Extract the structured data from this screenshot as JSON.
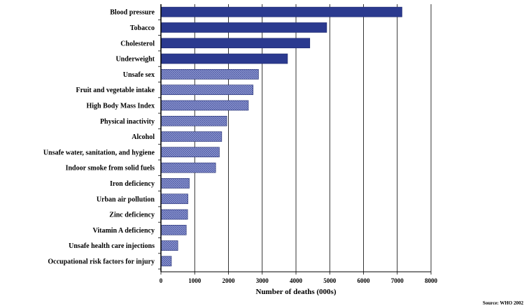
{
  "chart_data": {
    "type": "bar",
    "orientation": "horizontal",
    "categories": [
      "Blood pressure",
      "Tobacco",
      "Cholesterol",
      "Underweight",
      "Unsafe sex",
      "Fruit and vegetable intake",
      "High Body Mass Index",
      "Physical inactivity",
      "Alcohol",
      "Unsafe water, sanitation, and hygiene",
      "Indoor smoke from solid fuels",
      "Iron deficiency",
      "Urban air pollution",
      "Zinc deficiency",
      "Vitamin A deficiency",
      "Unsafe health care injections",
      "Occupational risk factors for injury"
    ],
    "values": [
      7140,
      4910,
      4410,
      3750,
      2890,
      2730,
      2590,
      1950,
      1800,
      1730,
      1620,
      840,
      800,
      790,
      750,
      500,
      310
    ],
    "xlabel": "Number of deaths (000s)",
    "xticks": [
      0,
      1000,
      2000,
      3000,
      4000,
      5000,
      6000,
      7000,
      8000
    ],
    "xlim": [
      0,
      8000
    ],
    "grid": "vertical",
    "source": "Source: WHO 2002",
    "colors": {
      "dark_bar": "#2b3a8f",
      "light_bar": "#7b86c6",
      "grid": "#000000"
    },
    "dark_bar_count": 4
  }
}
